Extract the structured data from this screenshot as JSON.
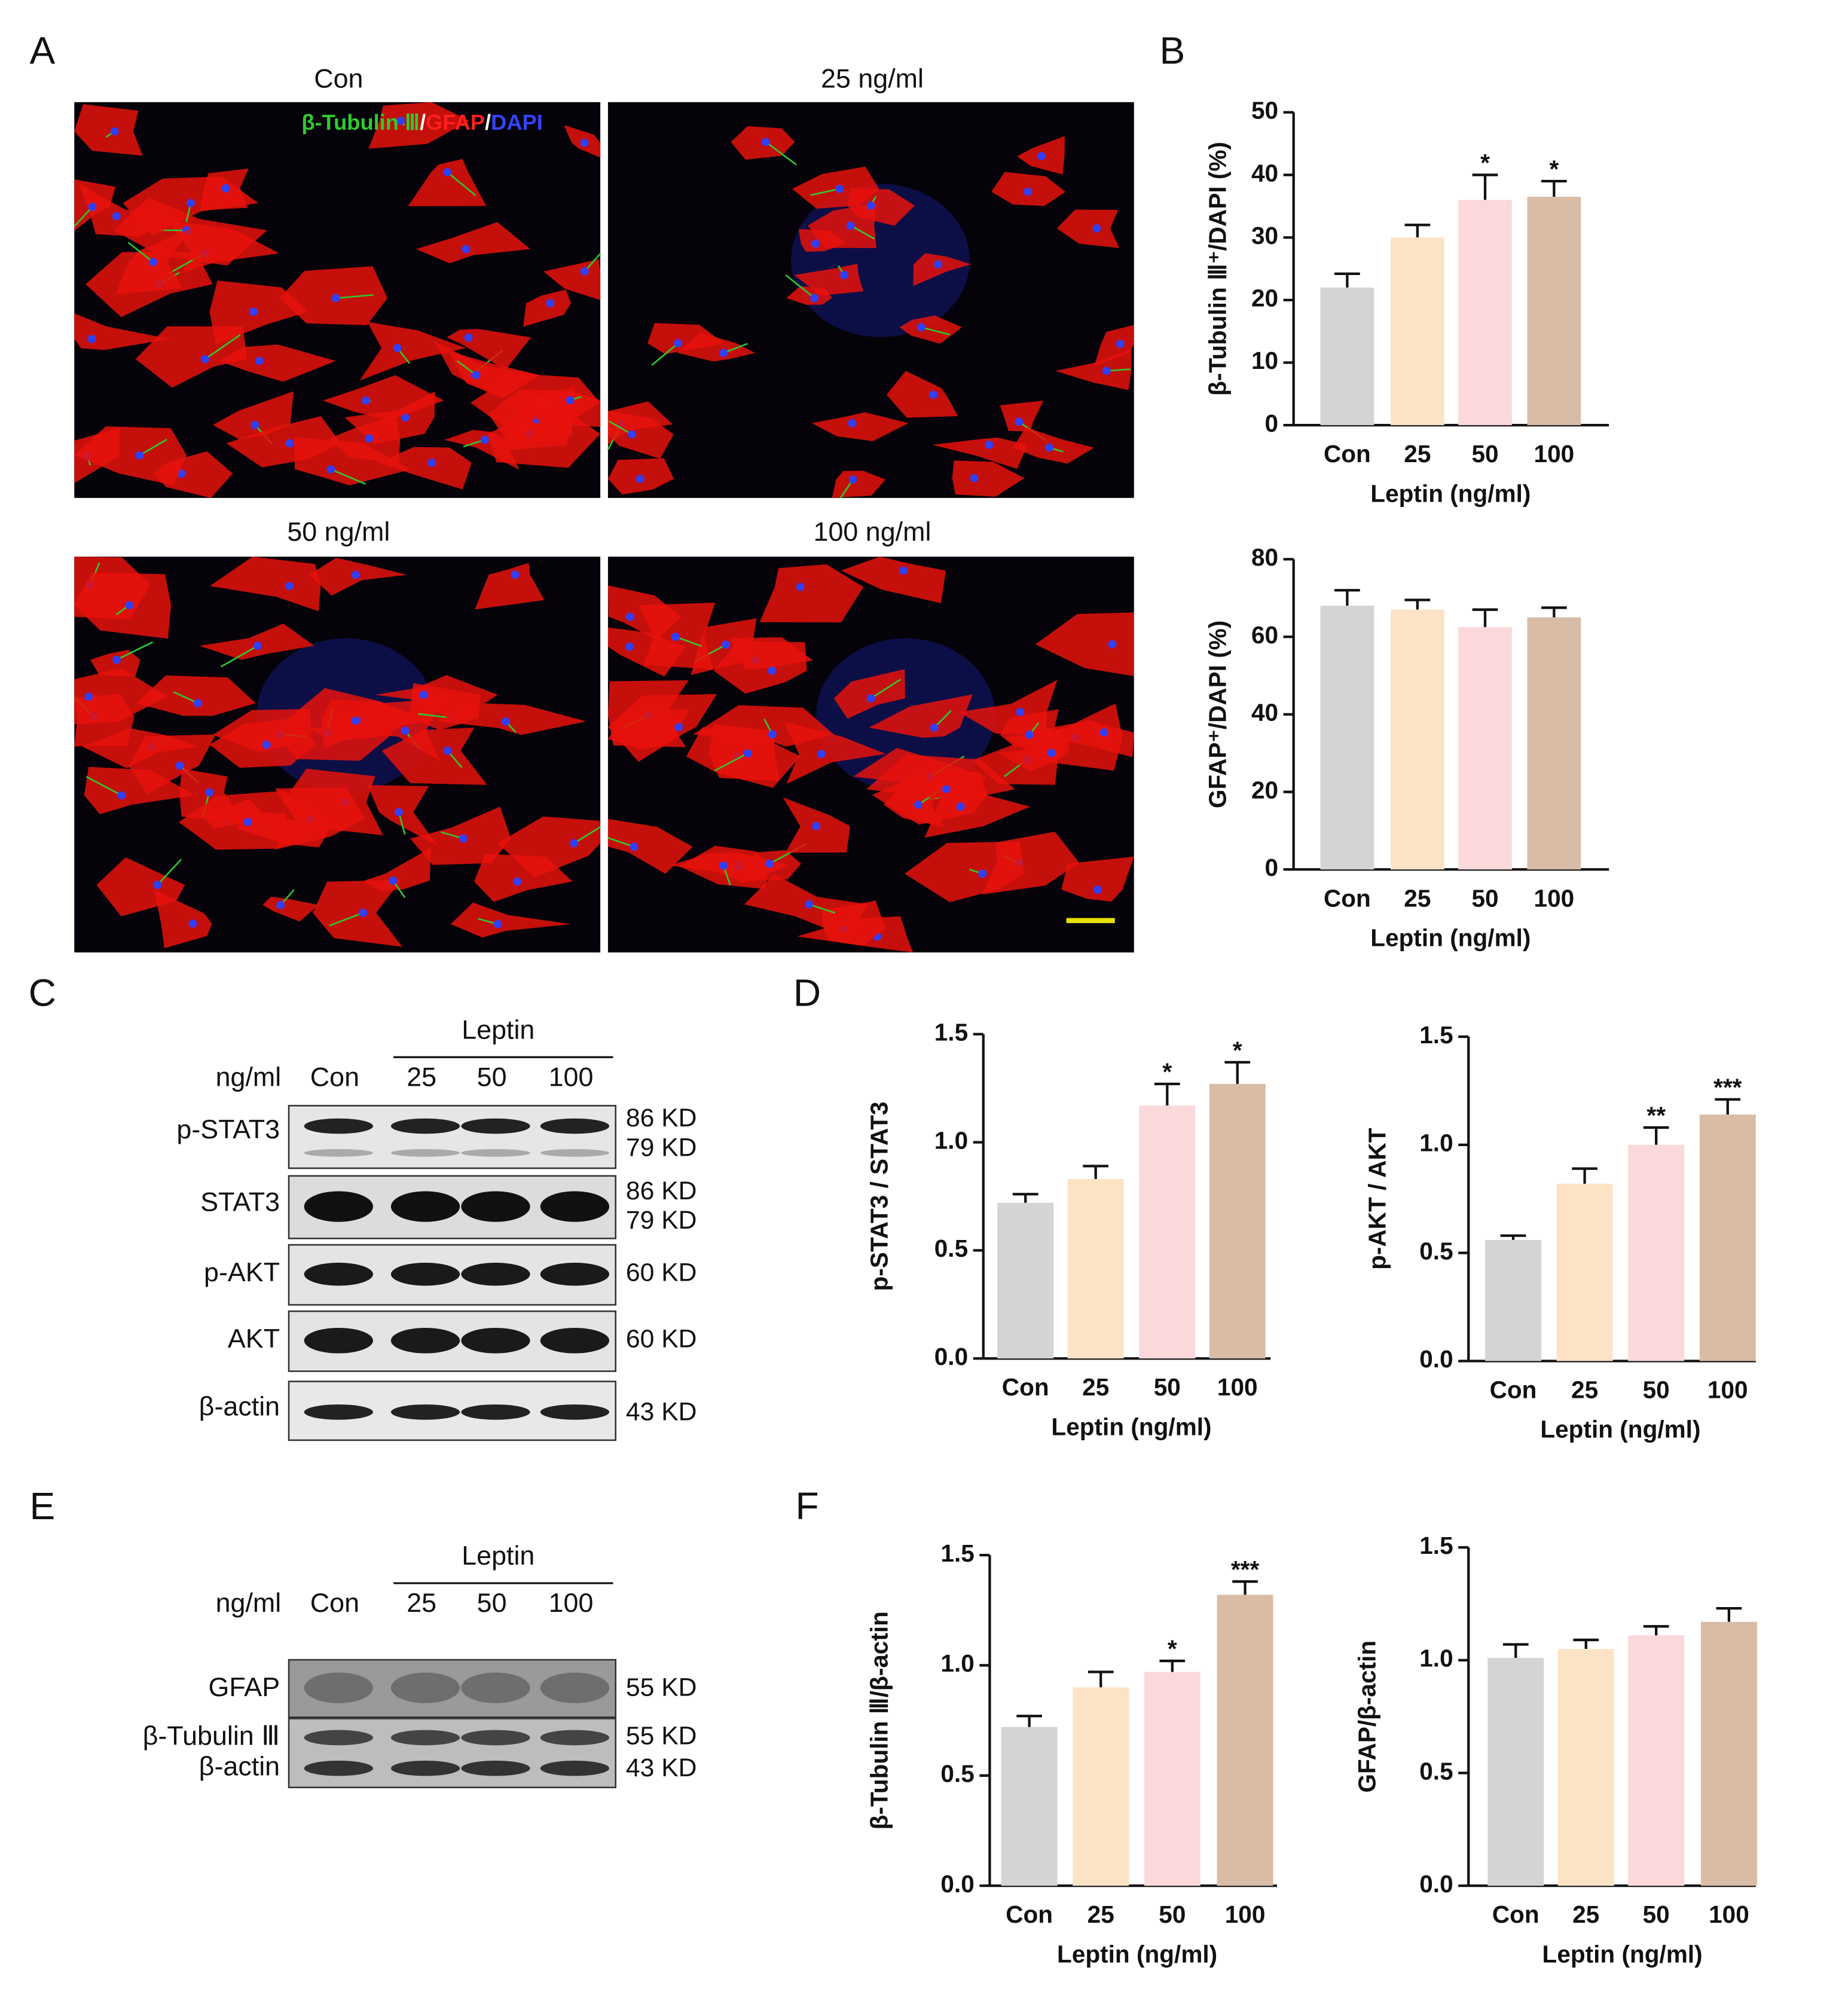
{
  "panel_labels": [
    "A",
    "B",
    "C",
    "D",
    "E",
    "F"
  ],
  "micrographs": {
    "titles": [
      "Con",
      "25 ng/ml",
      "50 ng/ml",
      "100 ng/ml"
    ],
    "legend": [
      "β-Tubulin Ⅲ",
      "/",
      "GFAP",
      "/",
      "DAPI"
    ]
  },
  "blot_c": {
    "group": "Leptin",
    "unit": "ng/ml",
    "lanes": [
      "Con",
      "25",
      "50",
      "100"
    ],
    "rows": [
      {
        "label": "p-STAT3",
        "sizes": [
          "86 KD",
          "79 KD"
        ]
      },
      {
        "label": "STAT3",
        "sizes": [
          "86 KD",
          "79 KD"
        ]
      },
      {
        "label": "p-AKT",
        "sizes": [
          "60 KD"
        ]
      },
      {
        "label": "AKT",
        "sizes": [
          "60 KD"
        ]
      },
      {
        "label": "β-actin",
        "sizes": [
          "43 KD"
        ]
      }
    ]
  },
  "blot_e": {
    "group": "Leptin",
    "unit": "ng/ml",
    "lanes": [
      "Con",
      "25",
      "50",
      "100"
    ],
    "rows": [
      {
        "label": "GFAP",
        "sizes": [
          "55 KD"
        ]
      },
      {
        "label": "β-Tubulin Ⅲ",
        "sizes": [
          "55 KD"
        ]
      },
      {
        "label": "β-actin",
        "sizes": [
          "43 KD"
        ]
      }
    ]
  },
  "chart_data": [
    {
      "type": "bar",
      "y_label": "β-Tubulin Ⅲ⁺/DAPI (%)",
      "x_label": "Leptin (ng/ml)",
      "categories": [
        "Con",
        "25",
        "50",
        "100"
      ],
      "values": [
        22,
        30,
        36,
        36.5
      ],
      "errors": [
        2.2,
        2,
        4,
        2.5
      ],
      "stars": [
        null,
        null,
        "*",
        "*"
      ],
      "colors": [
        "#d4d4d4",
        "#fde3c6",
        "#fbd9da",
        "#d9bca5"
      ],
      "ylim": [
        0,
        50
      ],
      "yticks": [
        0,
        10,
        20,
        30,
        40,
        50
      ]
    },
    {
      "type": "bar",
      "y_label": "GFAP⁺/DAPI (%)",
      "x_label": "Leptin (ng/ml)",
      "categories": [
        "Con",
        "25",
        "50",
        "100"
      ],
      "values": [
        68,
        67,
        62.5,
        65
      ],
      "errors": [
        4,
        2.5,
        4.5,
        2.5
      ],
      "stars": [
        null,
        null,
        null,
        null
      ],
      "colors": [
        "#d4d4d4",
        "#fde3c6",
        "#fbd9da",
        "#d9bca5"
      ],
      "ylim": [
        0,
        80
      ],
      "yticks": [
        0,
        20,
        40,
        60,
        80
      ]
    },
    {
      "type": "bar",
      "y_label": "p-STAT3 / STAT3",
      "x_label": "Leptin (ng/ml)",
      "categories": [
        "Con",
        "25",
        "50",
        "100"
      ],
      "values": [
        0.72,
        0.83,
        1.17,
        1.27
      ],
      "errors": [
        0.04,
        0.06,
        0.1,
        0.1
      ],
      "stars": [
        null,
        null,
        "*",
        "*"
      ],
      "colors": [
        "#d4d4d4",
        "#fde3c6",
        "#fbd9da",
        "#d9bca5"
      ],
      "ylim": [
        0,
        1.5
      ],
      "yticks": [
        {
          "value": 0,
          "label": "0.0"
        },
        0.5,
        {
          "value": 1,
          "label": "1.0"
        },
        1.5
      ]
    },
    {
      "type": "bar",
      "y_label": "p-AKT / AKT",
      "x_label": "Leptin (ng/ml)",
      "categories": [
        "Con",
        "25",
        "50",
        "100"
      ],
      "values": [
        0.56,
        0.82,
        1.0,
        1.14
      ],
      "errors": [
        0.02,
        0.07,
        0.08,
        0.07
      ],
      "stars": [
        null,
        null,
        "**",
        "***"
      ],
      "colors": [
        "#d4d4d4",
        "#fde3c6",
        "#fbd9da",
        "#d9bca5"
      ],
      "ylim": [
        0,
        1.5
      ],
      "yticks": [
        {
          "value": 0,
          "label": "0.0"
        },
        0.5,
        {
          "value": 1,
          "label": "1.0"
        },
        1.5
      ]
    },
    {
      "type": "bar",
      "y_label": "β-Tubulin Ⅲ/β-actin",
      "x_label": "Leptin (ng/ml)",
      "categories": [
        "Con",
        "25",
        "50",
        "100"
      ],
      "values": [
        0.72,
        0.9,
        0.97,
        1.32
      ],
      "errors": [
        0.05,
        0.07,
        0.05,
        0.06
      ],
      "stars": [
        null,
        null,
        "*",
        "***"
      ],
      "colors": [
        "#d4d4d4",
        "#fde3c6",
        "#fbd9da",
        "#d9bca5"
      ],
      "ylim": [
        0,
        1.5
      ],
      "yticks": [
        {
          "value": 0,
          "label": "0.0"
        },
        0.5,
        {
          "value": 1,
          "label": "1.0"
        },
        1.5
      ]
    },
    {
      "type": "bar",
      "y_label": "GFAP/β-actin",
      "x_label": "Leptin (ng/ml)",
      "categories": [
        "Con",
        "25",
        "50",
        "100"
      ],
      "values": [
        1.01,
        1.05,
        1.11,
        1.17
      ],
      "errors": [
        0.06,
        0.04,
        0.04,
        0.06
      ],
      "stars": [
        null,
        null,
        null,
        null
      ],
      "colors": [
        "#d4d4d4",
        "#fde3c6",
        "#fbd9da",
        "#d9bca5"
      ],
      "ylim": [
        0,
        1.5
      ],
      "yticks": [
        {
          "value": 0,
          "label": "0.0"
        },
        0.5,
        {
          "value": 1,
          "label": "1.0"
        },
        1.5
      ]
    }
  ]
}
